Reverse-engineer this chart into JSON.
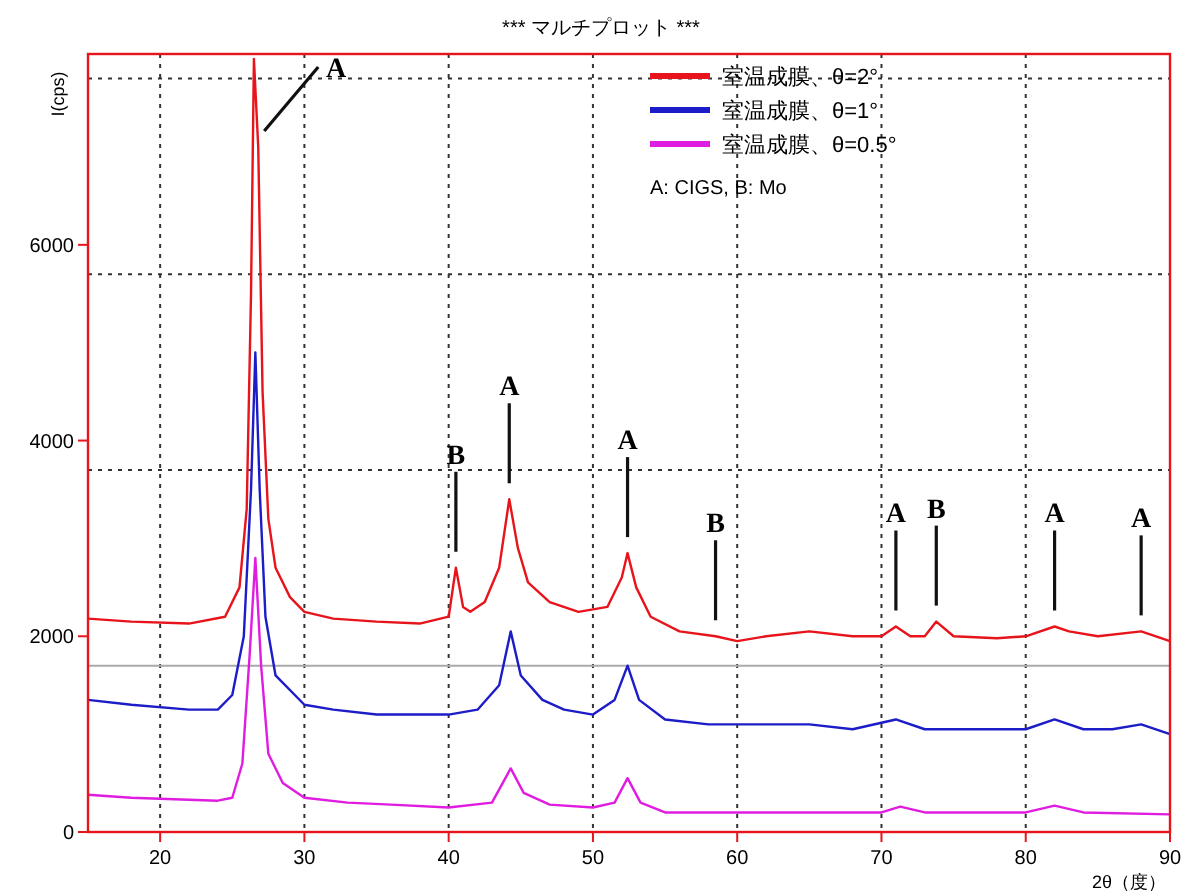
{
  "chart_data": {
    "type": "line",
    "title": "***    マルチプロット    ***",
    "xlabel": "2θ（度）",
    "ylabel": "I(cps)",
    "xlim": [
      15,
      90
    ],
    "xticks": [
      20,
      30,
      40,
      50,
      60,
      70,
      80,
      90
    ],
    "ylim": [
      0,
      7950
    ],
    "yticks": [
      0,
      2000,
      4000,
      6000
    ],
    "grid": "x",
    "legend": "top right",
    "line_style": "solid",
    "marker": "none",
    "ref_lines": [
      {
        "axis": "y",
        "value": 1700,
        "label": null,
        "color": "#aaaaaa",
        "line_style": "solid"
      },
      {
        "axis": "y",
        "value": 3700,
        "label": null,
        "color": "#333333",
        "line_style": "dotted"
      },
      {
        "axis": "y",
        "value": 5700,
        "label": null,
        "color": "#333333",
        "line_style": "dotted"
      },
      {
        "axis": "y",
        "value": 7700,
        "label": null,
        "color": "#333333",
        "line_style": "dotted"
      }
    ],
    "series": [
      {
        "name": "室温成膜、θ=2°",
        "color": "#e8141c",
        "x": [
          15,
          18,
          22,
          24.5,
          25.5,
          26,
          26.3,
          26.5,
          26.8,
          27.1,
          27.5,
          28,
          29,
          30,
          32,
          35,
          38,
          40,
          40.5,
          41,
          41.5,
          42.5,
          43.5,
          44.2,
          44.8,
          45.5,
          47,
          49,
          51,
          52,
          52.4,
          53,
          54,
          56,
          58.5,
          60,
          62,
          65,
          68,
          70,
          71,
          72,
          73,
          73.8,
          75,
          78,
          80,
          82,
          83,
          85,
          88,
          90
        ],
        "values": [
          2180,
          2150,
          2130,
          2200,
          2500,
          3300,
          5500,
          7900,
          7000,
          4500,
          3200,
          2700,
          2400,
          2250,
          2180,
          2150,
          2130,
          2200,
          2700,
          2300,
          2250,
          2350,
          2700,
          3400,
          2900,
          2550,
          2350,
          2250,
          2300,
          2600,
          2850,
          2500,
          2200,
          2050,
          2000,
          1950,
          2000,
          2050,
          2000,
          2000,
          2100,
          2000,
          2000,
          2150,
          2000,
          1980,
          2000,
          2100,
          2050,
          2000,
          2050,
          1950
        ]
      },
      {
        "name": "室温成膜、θ=1°",
        "color": "#1c1cc8",
        "x": [
          15,
          18,
          22,
          24,
          25,
          25.8,
          26.3,
          26.6,
          26.9,
          27.3,
          28,
          30,
          32,
          35,
          40,
          42,
          43.5,
          44.3,
          45,
          46.5,
          48,
          50,
          51.5,
          52.4,
          53.2,
          55,
          58,
          62,
          65,
          68,
          71,
          73,
          78,
          80,
          82,
          84,
          86,
          88,
          90
        ],
        "values": [
          1350,
          1300,
          1250,
          1250,
          1400,
          2000,
          3500,
          4900,
          3500,
          2200,
          1600,
          1300,
          1250,
          1200,
          1200,
          1250,
          1500,
          2050,
          1600,
          1350,
          1250,
          1200,
          1350,
          1700,
          1350,
          1150,
          1100,
          1100,
          1100,
          1050,
          1150,
          1050,
          1050,
          1050,
          1150,
          1050,
          1050,
          1100,
          1000
        ]
      },
      {
        "name": "室温成膜、θ=0.5°",
        "color": "#e01ce0",
        "x": [
          15,
          18,
          22,
          24,
          25,
          25.7,
          26.2,
          26.6,
          27,
          27.5,
          28.5,
          30,
          33,
          36,
          40,
          43,
          44.3,
          45.2,
          47,
          50,
          51.5,
          52.4,
          53.3,
          55,
          60,
          65,
          70,
          71.3,
          73,
          80,
          82,
          84,
          90
        ],
        "values": [
          380,
          350,
          330,
          320,
          350,
          700,
          1800,
          2800,
          1700,
          800,
          500,
          350,
          300,
          280,
          250,
          300,
          650,
          400,
          280,
          250,
          300,
          550,
          300,
          200,
          200,
          200,
          200,
          260,
          200,
          200,
          270,
          200,
          180
        ]
      }
    ],
    "annotations": [
      {
        "text": "A",
        "x": 26.8,
        "y": 7000
      },
      {
        "text": "B",
        "x": 40.5,
        "y": 2700
      },
      {
        "text": "A",
        "x": 44.2,
        "y": 3400
      },
      {
        "text": "A",
        "x": 52.4,
        "y": 2850
      },
      {
        "text": "B",
        "x": 58.5,
        "y": 2000
      },
      {
        "text": "A",
        "x": 71,
        "y": 2100
      },
      {
        "text": "B",
        "x": 73.8,
        "y": 2150
      },
      {
        "text": "A",
        "x": 82,
        "y": 2100
      },
      {
        "text": "A",
        "x": 88,
        "y": 2050
      },
      "A: CIGS, B: Mo"
    ]
  }
}
